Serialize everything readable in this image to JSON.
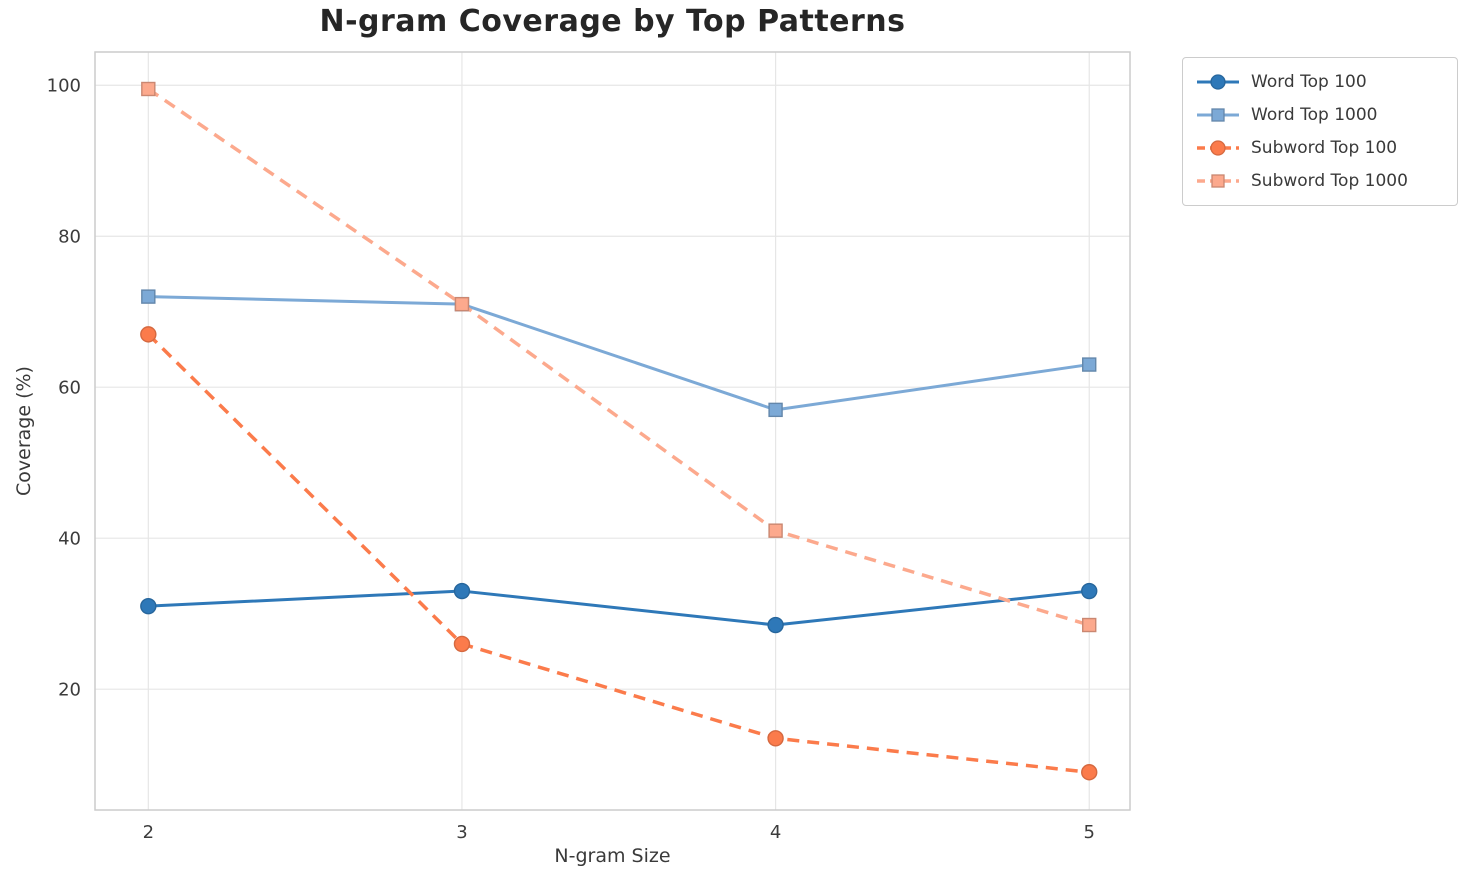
{
  "chart_data": {
    "type": "line",
    "title": "N-gram Coverage by Top Patterns",
    "xlabel": "N-gram Size",
    "ylabel": "Coverage (%)",
    "x": [
      2,
      3,
      4,
      5
    ],
    "x_tick_labels": [
      "2",
      "3",
      "4",
      "5"
    ],
    "y_ticks": [
      20,
      40,
      60,
      80,
      100
    ],
    "y_tick_labels": [
      "20",
      "40",
      "60",
      "80",
      "100"
    ],
    "xlim": [
      1.83,
      5.13
    ],
    "ylim": [
      4,
      104.4
    ],
    "grid": true,
    "legend_position": "outside-top-right",
    "series": [
      {
        "name": "Word Top 100",
        "values": [
          31,
          33,
          28.5,
          33
        ],
        "color": "#2E78B8",
        "marker": "circle",
        "dash": "solid"
      },
      {
        "name": "Word Top 1000",
        "values": [
          72,
          71,
          57,
          63
        ],
        "color": "#7CA9D6",
        "marker": "square",
        "dash": "solid"
      },
      {
        "name": "Subword Top 100",
        "values": [
          67,
          26,
          13.5,
          9
        ],
        "color": "#FB7B4B",
        "marker": "circle",
        "dash": "dashed"
      },
      {
        "name": "Subword Top 1000",
        "values": [
          99.5,
          71,
          41,
          28.5
        ],
        "color": "#FCA98D",
        "marker": "square",
        "dash": "dashed"
      }
    ],
    "grid_color": "#e6e6e6",
    "border_color": "#cccccc",
    "tick_label_color": "#3c3c3c"
  }
}
